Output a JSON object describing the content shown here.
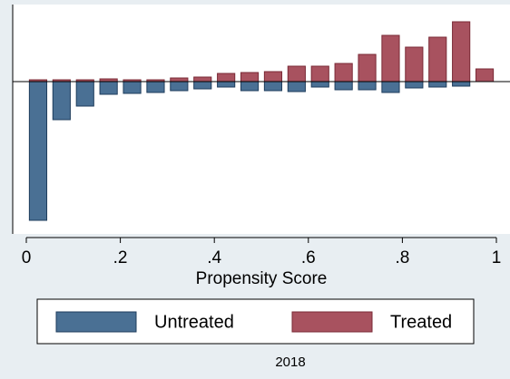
{
  "chart_data": {
    "type": "bar",
    "x_label": "Propensity Score",
    "note": "2018",
    "x": [
      0.025,
      0.075,
      0.125,
      0.175,
      0.225,
      0.275,
      0.325,
      0.375,
      0.425,
      0.475,
      0.525,
      0.575,
      0.625,
      0.675,
      0.725,
      0.775,
      0.825,
      0.875,
      0.925,
      0.975
    ],
    "series": [
      {
        "name": "Untreated",
        "color": "#4a7094",
        "values": [
          -1.53,
          -0.42,
          -0.27,
          -0.14,
          -0.13,
          -0.12,
          -0.1,
          -0.08,
          -0.06,
          -0.1,
          -0.1,
          -0.11,
          -0.06,
          -0.09,
          -0.09,
          -0.12,
          -0.07,
          -0.06,
          -0.05,
          0
        ]
      },
      {
        "name": "Treated",
        "color": "#a8525f",
        "values": [
          0.02,
          0.02,
          0.02,
          0.03,
          0.02,
          0.02,
          0.04,
          0.05,
          0.09,
          0.1,
          0.11,
          0.17,
          0.17,
          0.2,
          0.3,
          0.51,
          0.38,
          0.49,
          0.66,
          0.14
        ]
      }
    ],
    "xlim": [
      0,
      1
    ],
    "ylim": [
      -1.68,
      0.85
    ],
    "xticks": [
      0,
      {
        "value": 0.2,
        "label": ".2"
      },
      {
        "value": 0.4,
        "label": ".4"
      },
      {
        "value": 0.6,
        "label": ".6"
      },
      {
        "value": 0.8,
        "label": ".8"
      },
      1
    ]
  }
}
